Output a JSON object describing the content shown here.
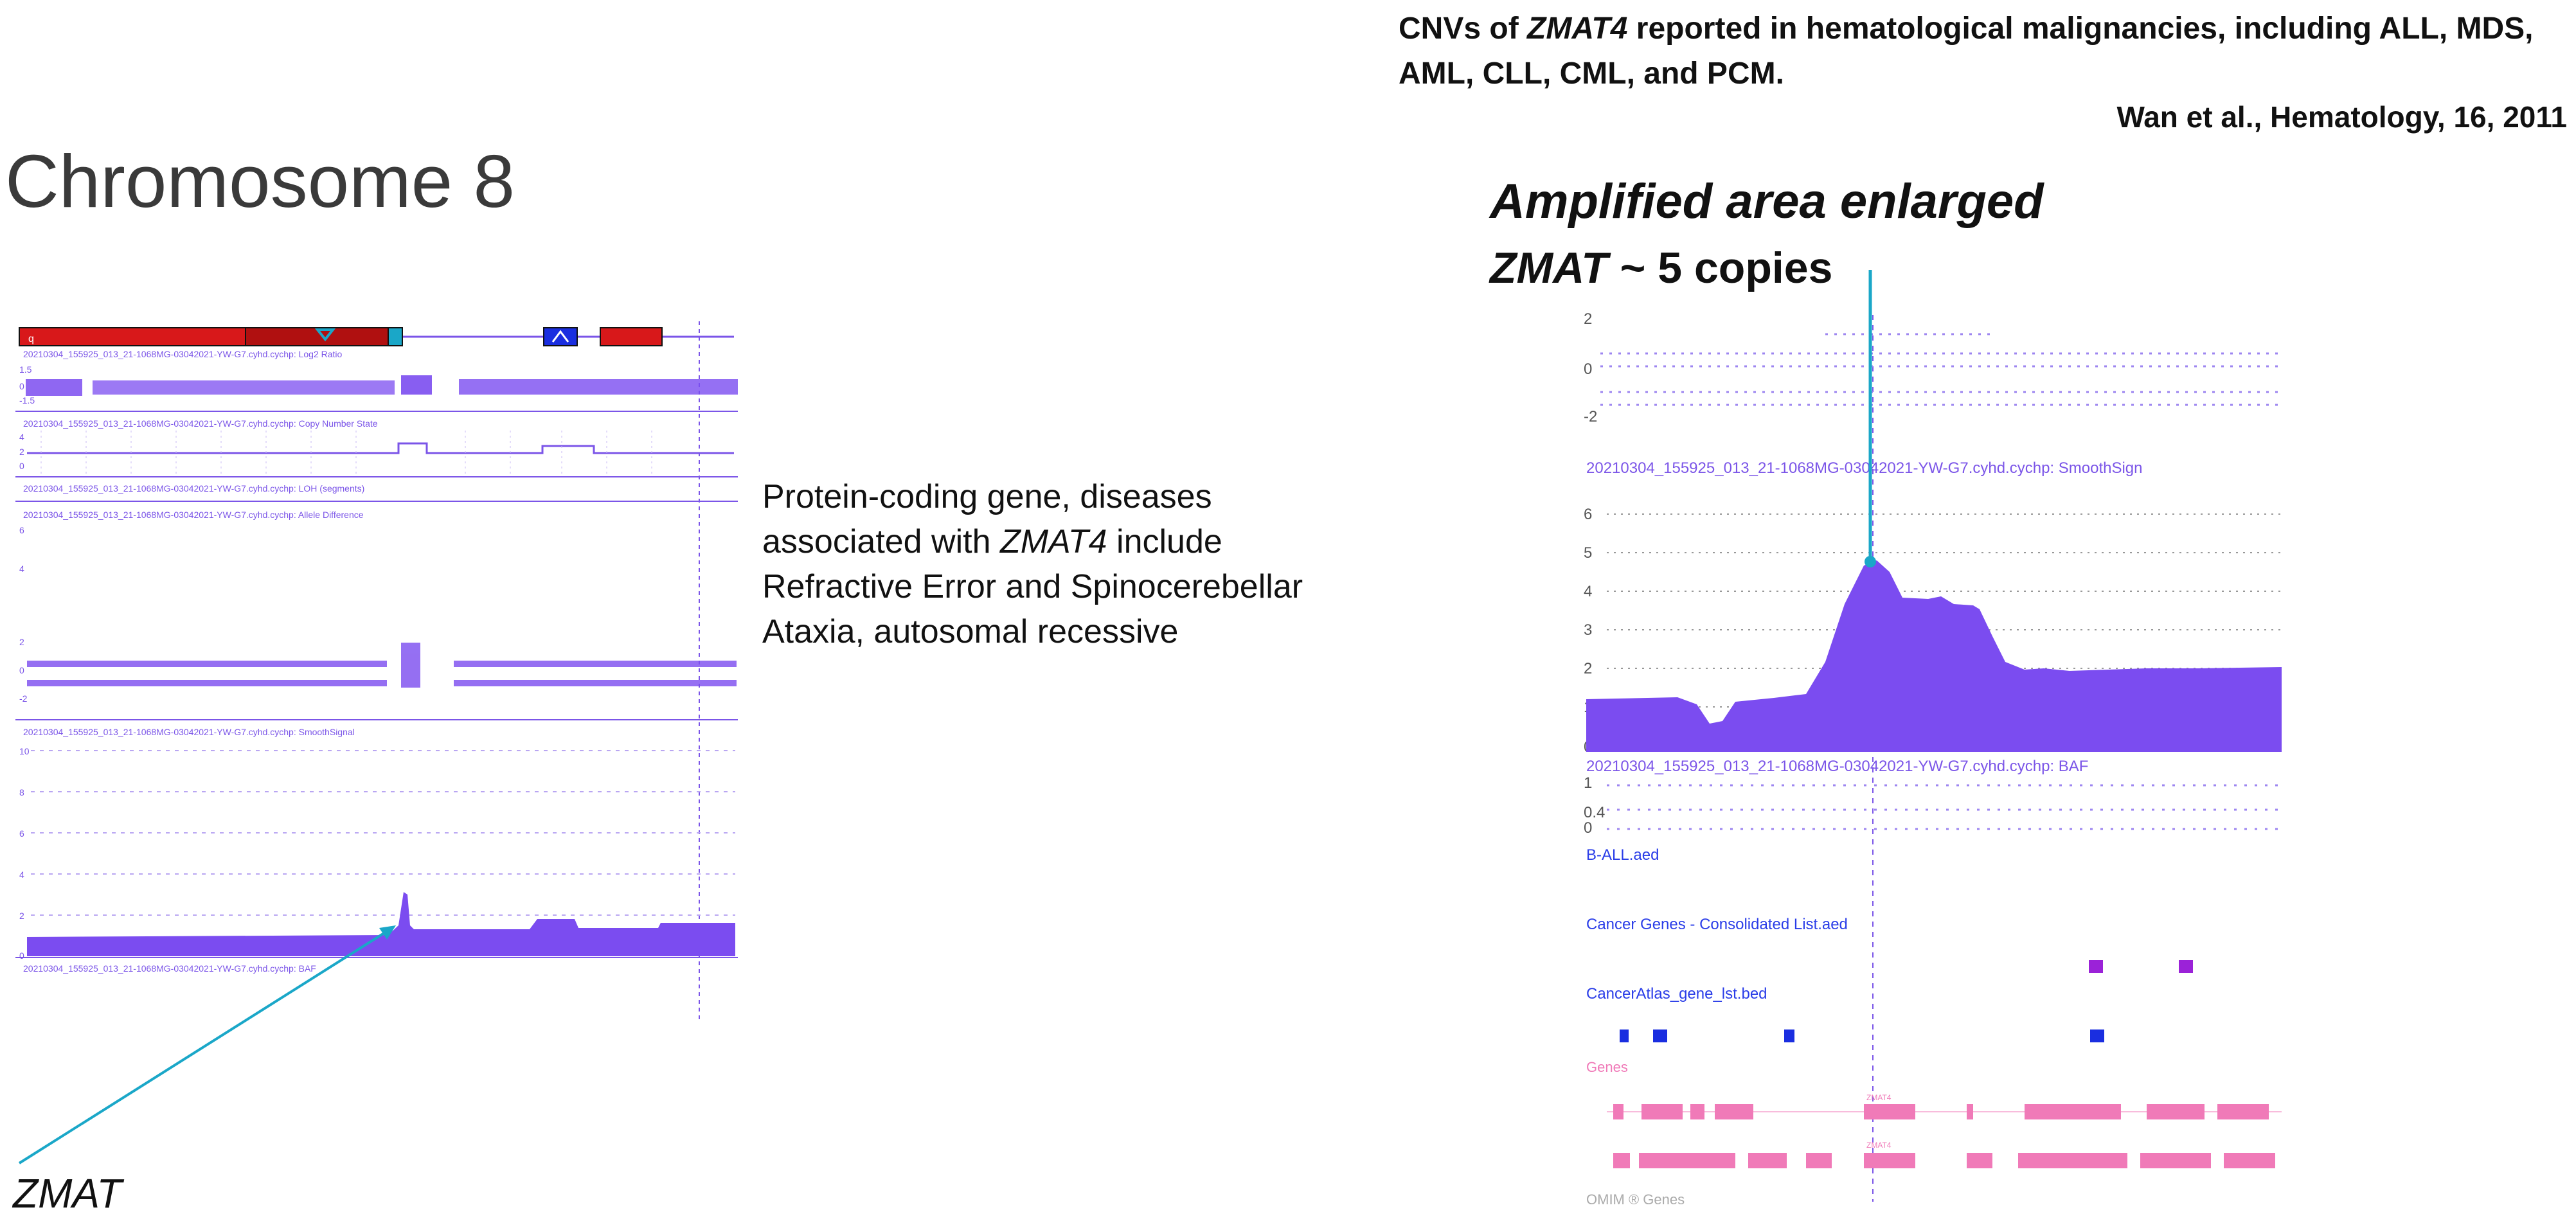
{
  "slide": {
    "title": "Chromosome 8",
    "reference_line": "CNVs of ZMAT4 reported in hematological malignancies, including ALL, MDS, AML, CLL, CML, and PCM.",
    "reference_line_parts": {
      "pre": "CNVs of ",
      "gene": "ZMAT4",
      "post": " reported in hematological malignancies, including ALL, MDS, AML, CLL, CML, and PCM."
    },
    "citation": "Wan et al., Hematology, 16, 2011",
    "amplified_heading": "Amplified area enlarged",
    "copies_gene": "ZMAT",
    "copies_text": " ~ 5 copies",
    "description_pre": "Protein-coding gene, diseases associated with ",
    "description_gene": "ZMAT4",
    "description_post": " include Refractive Error and Spinocerebellar Ataxia, autosomal recessive",
    "zmat_label": "ZMAT"
  },
  "left_panel": {
    "tracks": {
      "log2": "20210304_155925_013_21-1068MG-03042021-YW-G7.cyhd.cychp: Log2 Ratio",
      "cn_state": "20210304_155925_013_21-1068MG-03042021-YW-G7.cyhd.cychp: Copy Number State",
      "loh": "20210304_155925_013_21-1068MG-03042021-YW-G7.cyhd.cychp: LOH (segments)",
      "allele": "20210304_155925_013_21-1068MG-03042021-YW-G7.cyhd.cychp: Allele Difference",
      "smooth": "20210304_155925_013_21-1068MG-03042021-YW-G7.cyhd.cychp: SmoothSignal",
      "baf": "20210304_155925_013_21-1068MG-03042021-YW-G7.cyhd.cychp: BAF"
    },
    "log2_ticks": [
      "1.5",
      "0",
      "-1.5"
    ],
    "cn_ticks": [
      "4",
      "2",
      "0"
    ],
    "allele_ticks": [
      "6",
      "4",
      "2",
      "0",
      "-2"
    ],
    "smooth_ticks": [
      "10",
      "8",
      "6",
      "4",
      "2",
      "0"
    ]
  },
  "right_panel": {
    "top_ticks": [
      "2",
      "0",
      "-2"
    ],
    "smooth_label": "20210304_155925_013_21-1068MG-03042021-YW-G7.cyhd.cychp: SmoothSign",
    "smooth_ticks": [
      "6",
      "5",
      "4",
      "3",
      "2",
      "1",
      "0"
    ],
    "baf_label": "20210304_155925_013_21-1068MG-03042021-YW-G7.cyhd.cychp: BAF",
    "baf_ticks": [
      "1",
      "0.4",
      "0"
    ],
    "tracks": {
      "ball": "B-ALL.aed",
      "cancer_genes": "Cancer Genes - Consolidated List.aed",
      "cancer_atlas": "CancerAtlas_gene_lst.bed",
      "genes": "Genes",
      "omim": "OMIM ® Genes"
    },
    "gene_marks": [
      "ZMAT4",
      "ZMAT4"
    ]
  },
  "colors": {
    "purple": "#7b4cf0",
    "label_purple": "#7b55e8",
    "red": "#d8181a",
    "blue": "#1a2ee0",
    "magenta": "#9b22d8",
    "pink": "#f07ab8",
    "arrow": "#1aa7c8"
  }
}
